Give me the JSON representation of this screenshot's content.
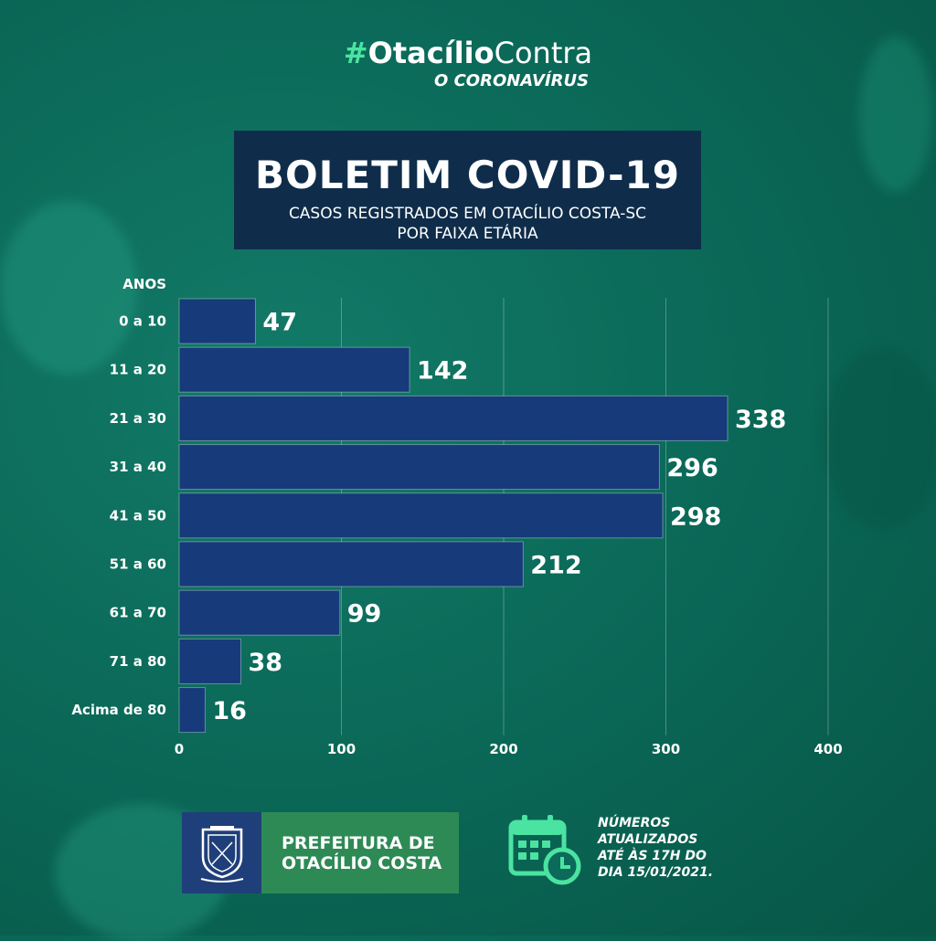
{
  "header": {
    "hash_symbol": "#",
    "hash_bold": "Otacílio",
    "hash_light": "Contra",
    "subtitle": "O CORONAVÍRUS"
  },
  "title_box": {
    "title": "BOLETIM COVID-19",
    "subtitle_line1": "CASOS REGISTRADOS EM OTACÍLIO COSTA-SC",
    "subtitle_line2": "POR  FAIXA ETÁRIA"
  },
  "chart_data": {
    "type": "bar",
    "orientation": "horizontal",
    "ylabel": "ANOS",
    "categories": [
      "0 a 10",
      "11 a 20",
      "21 a 30",
      "31 a 40",
      "41 a 50",
      "51 a 60",
      "61 a 70",
      "71 a 80",
      "Acima de 80"
    ],
    "values": [
      47,
      142,
      338,
      296,
      298,
      212,
      99,
      38,
      16
    ],
    "value_labels": [
      "47",
      "142",
      "338",
      "296",
      "298",
      "212",
      "99",
      "38",
      "16"
    ],
    "xlim": [
      0,
      400
    ],
    "xticks": [
      "0",
      "100",
      "200",
      "300",
      "400"
    ],
    "grid": true,
    "bar_color": "#163a7a"
  },
  "footer": {
    "prefeitura_line1": "PREFEITURA DE",
    "prefeitura_line2": "OTACÍLIO COSTA",
    "updated_line1": "NÚMEROS",
    "updated_line2": "ATUALIZADOS",
    "updated_line3": "ATÉ ÀS 17H DO",
    "updated_line4": "DIA 15/01/2021."
  },
  "colors": {
    "accent": "#4be3a1",
    "title_bg": "#0f2d4a",
    "crest_bg": "#1f3f7a",
    "prefeitura_bg": "#2e8a55",
    "calendar": "#4be3a1"
  },
  "icons": [
    "crest-icon",
    "calendar-clock-icon",
    "virus-icon"
  ]
}
